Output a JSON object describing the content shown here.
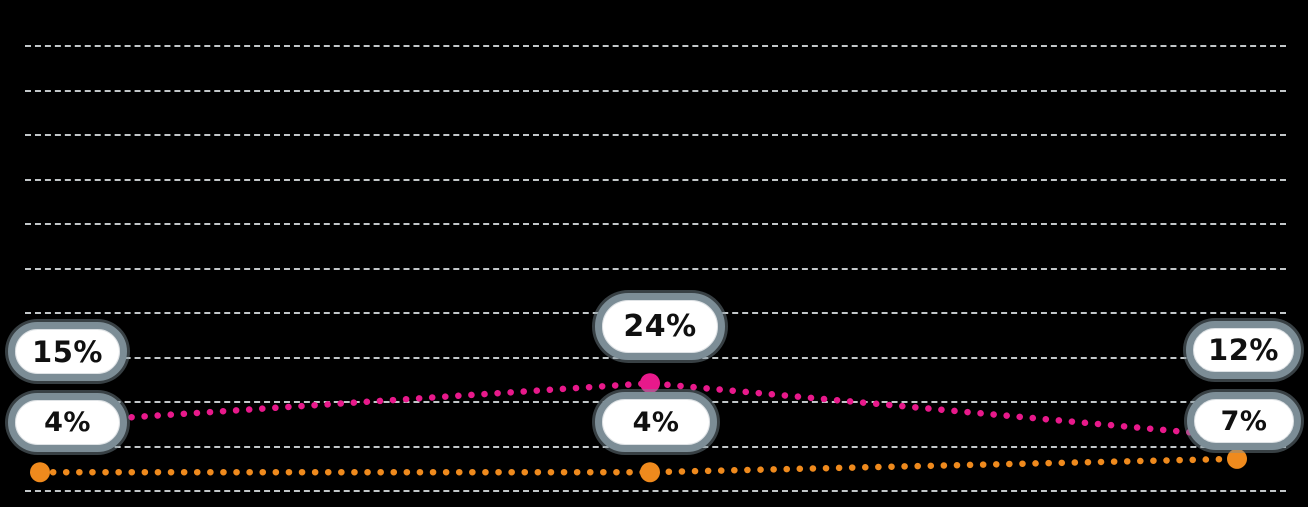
{
  "chart_data": {
    "type": "line",
    "title": "",
    "categories": [
      "",
      "",
      ""
    ],
    "ylim": [
      0,
      100
    ],
    "gridline_step": 10,
    "grid": true,
    "grid_color": "#cdd2d4",
    "background": "#000000",
    "label_border_color": "#7c8d96",
    "series": [
      {
        "name": "pink-series",
        "color": "#e8198b",
        "values": [
          15,
          24,
          12
        ],
        "labels": [
          "15%",
          "24%",
          "12%"
        ]
      },
      {
        "name": "orange-series",
        "color": "#ef8a1d",
        "values": [
          4,
          4,
          7
        ],
        "labels": [
          "4%",
          "4%",
          "7%"
        ]
      }
    ]
  }
}
